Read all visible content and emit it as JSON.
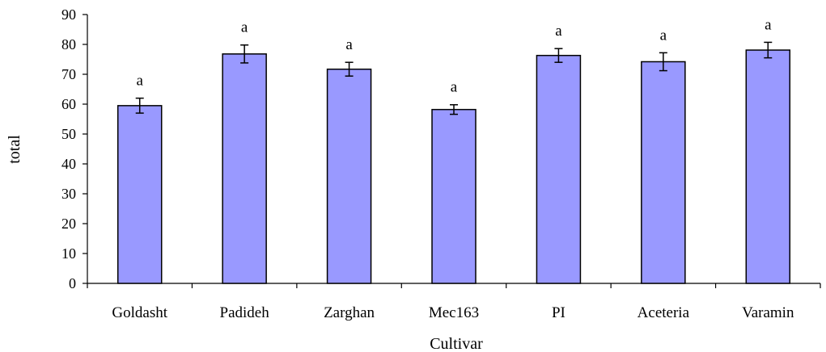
{
  "chart_data": {
    "type": "bar",
    "title": "",
    "xlabel": "Cultivar",
    "ylabel": "total",
    "ylim": [
      0,
      90
    ],
    "yticks": [
      0,
      10,
      20,
      30,
      40,
      50,
      60,
      70,
      80,
      90
    ],
    "grid": false,
    "categories": [
      "Goldasht",
      "Padideh",
      "Zarghan",
      "Mec163",
      "PI",
      "Aceteria",
      "Varamin"
    ],
    "values": [
      59.5,
      76.8,
      71.7,
      58.2,
      76.3,
      74.2,
      78.1
    ],
    "error": [
      2.5,
      3.0,
      2.3,
      1.6,
      2.3,
      3.0,
      2.6
    ],
    "annotations": [
      "a",
      "a",
      "a",
      "a",
      "a",
      "a",
      "a"
    ],
    "bar_color": "#9999ff",
    "bar_edge_color": "#000000"
  }
}
